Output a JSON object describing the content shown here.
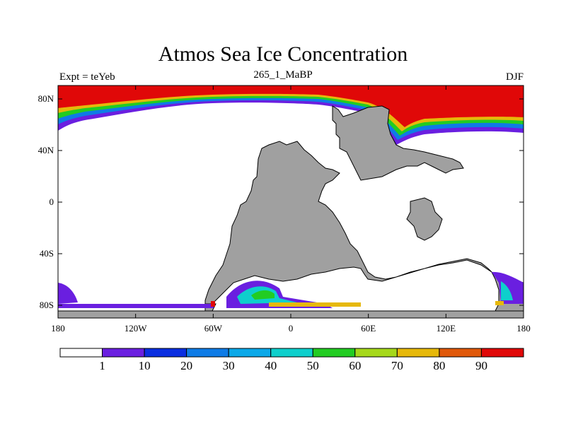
{
  "title": "Atmos Sea Ice Concentration",
  "left_label": "Expt = teYeb",
  "center_label": "265_1_MaBP",
  "right_label": "DJF",
  "x_ticks": [
    "180",
    "120W",
    "60W",
    "0",
    "60E",
    "120E",
    "180"
  ],
  "y_ticks": [
    "80N",
    "40N",
    "0",
    "40S",
    "80S"
  ],
  "colorbar": {
    "colors": [
      "#ffffff",
      "#6a1fe0",
      "#0a2ee0",
      "#0e7be6",
      "#0ba8e8",
      "#0ecfcc",
      "#22cc22",
      "#a5d81a",
      "#e6b80a",
      "#e0580a",
      "#e00808"
    ],
    "labels": [
      "1",
      "10",
      "20",
      "30",
      "40",
      "50",
      "60",
      "70",
      "80",
      "90"
    ]
  },
  "colors": {
    "land": "#a0a0a0",
    "coast": "#000000",
    "ice_max": "#e00808"
  }
}
